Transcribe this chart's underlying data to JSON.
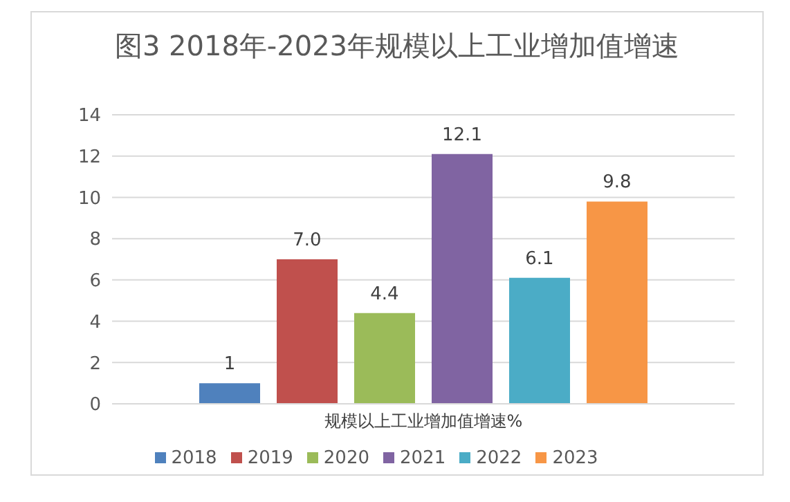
{
  "chart_data": {
    "type": "bar",
    "title": "图3 2018年-2023年规模以上工业增加值增速",
    "categories": [
      "规模以上工业增加值增速%"
    ],
    "series": [
      {
        "name": "2018",
        "color": "#4f81bd",
        "values": [
          1
        ],
        "value_labels": [
          "1"
        ]
      },
      {
        "name": "2019",
        "color": "#c0504d",
        "values": [
          7.0
        ],
        "value_labels": [
          "7.0"
        ]
      },
      {
        "name": "2020",
        "color": "#9bbb59",
        "values": [
          4.4
        ],
        "value_labels": [
          "4.4"
        ]
      },
      {
        "name": "2021",
        "color": "#8064a2",
        "values": [
          12.1
        ],
        "value_labels": [
          "12.1"
        ]
      },
      {
        "name": "2022",
        "color": "#4bacc6",
        "values": [
          6.1
        ],
        "value_labels": [
          "6.1"
        ]
      },
      {
        "name": "2023",
        "color": "#f79646",
        "values": [
          9.8
        ],
        "value_labels": [
          "9.8"
        ]
      }
    ],
    "ylim": [
      0,
      14
    ],
    "yticks": [
      0,
      2,
      4,
      6,
      8,
      10,
      12,
      14
    ],
    "grid": "y",
    "legend": "bottom"
  }
}
